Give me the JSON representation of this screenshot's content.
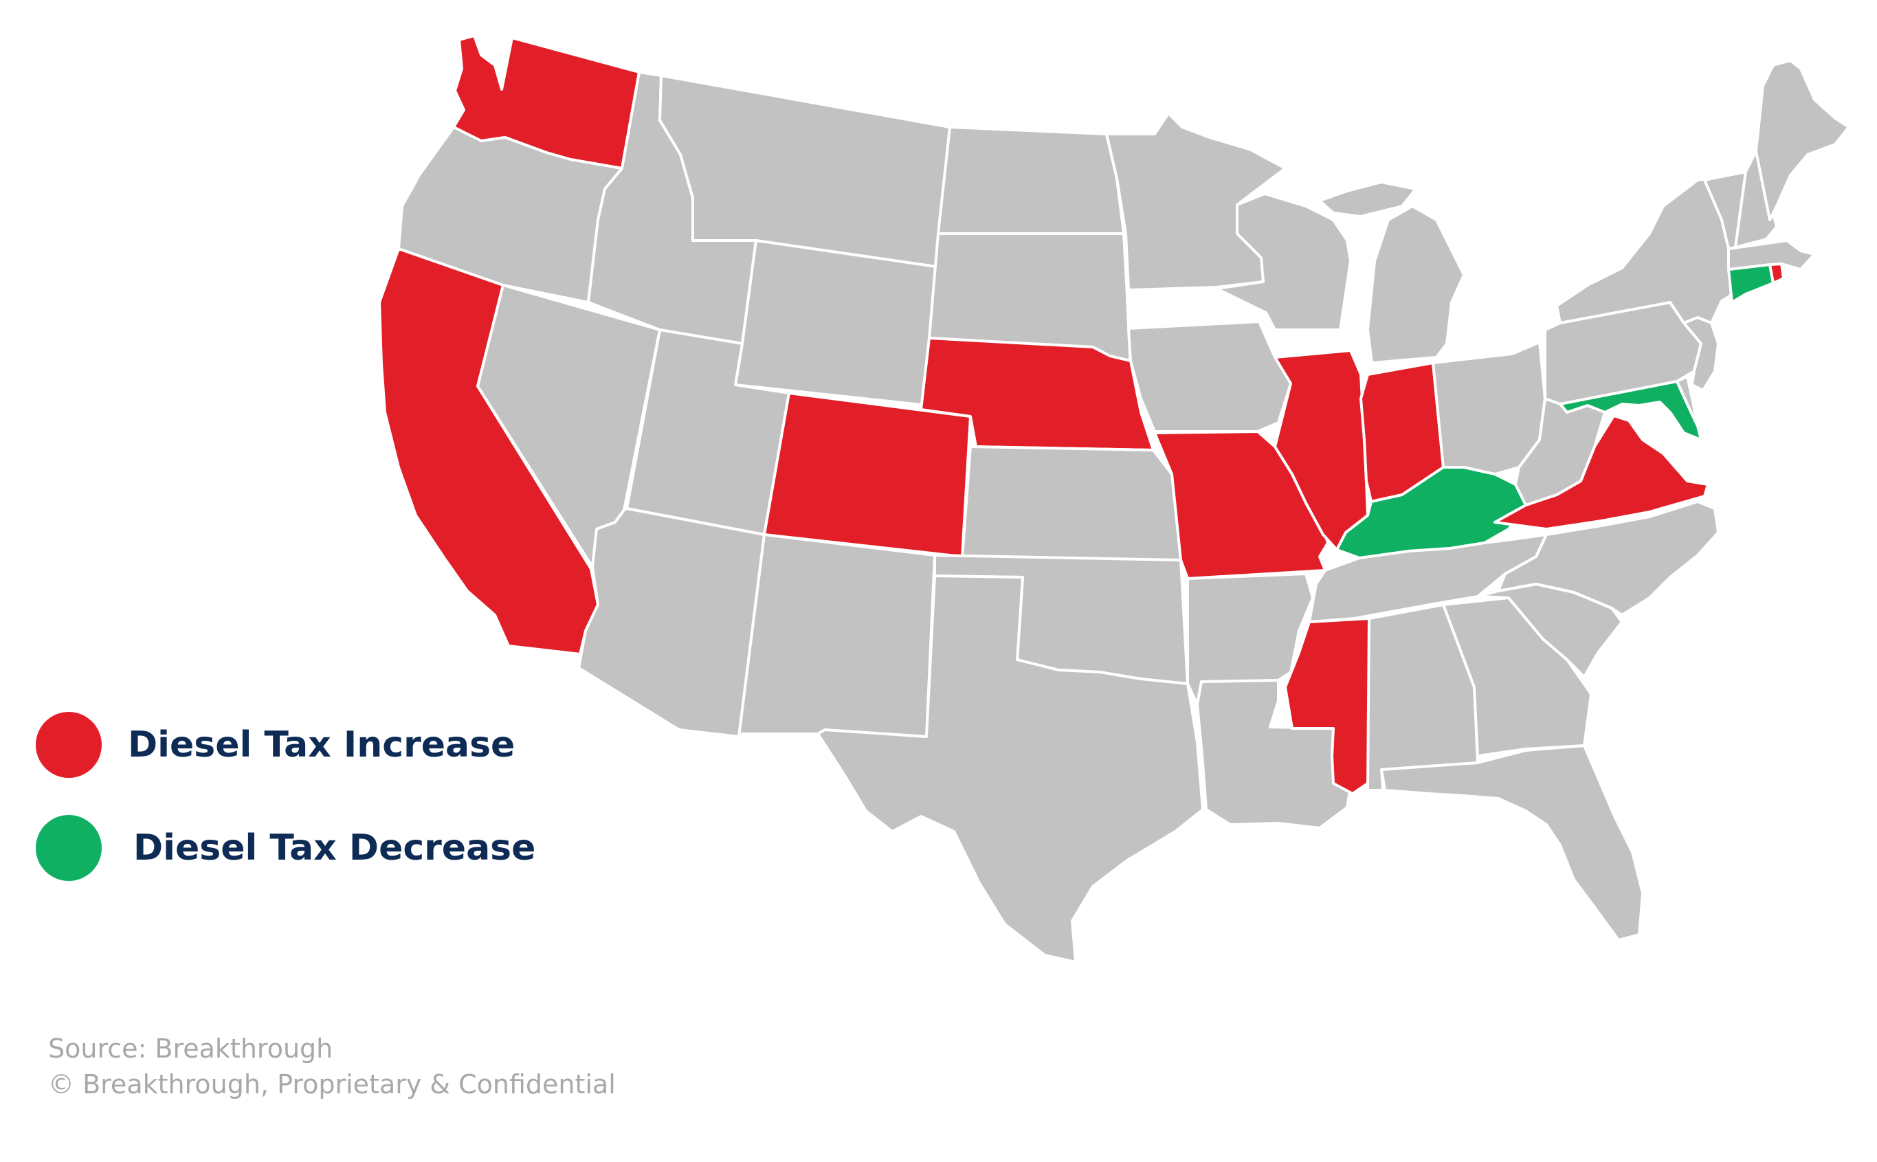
{
  "colors": {
    "increase": "#e21f28",
    "decrease": "#10b063",
    "neutral": "#c2c2c2",
    "border": "#ffffff",
    "legend_text": "#0e2b55",
    "source_text": "#a8a8a8"
  },
  "legend": {
    "increase_label": "Diesel Tax Increase",
    "decrease_label": "Diesel Tax Decrease"
  },
  "source": {
    "line1": "Source: Breakthrough",
    "line2": "© Breakthrough, Proprietary & Confidential"
  },
  "states": [
    {
      "id": "WA",
      "status": "increase"
    },
    {
      "id": "OR",
      "status": "none"
    },
    {
      "id": "CA",
      "status": "increase"
    },
    {
      "id": "NV",
      "status": "none"
    },
    {
      "id": "ID",
      "status": "none"
    },
    {
      "id": "MT",
      "status": "none"
    },
    {
      "id": "WY",
      "status": "none"
    },
    {
      "id": "UT",
      "status": "none"
    },
    {
      "id": "CO",
      "status": "increase"
    },
    {
      "id": "AZ",
      "status": "none"
    },
    {
      "id": "NM",
      "status": "none"
    },
    {
      "id": "ND",
      "status": "none"
    },
    {
      "id": "SD",
      "status": "none"
    },
    {
      "id": "NE",
      "status": "increase"
    },
    {
      "id": "KS",
      "status": "none"
    },
    {
      "id": "OK",
      "status": "none"
    },
    {
      "id": "TX",
      "status": "none"
    },
    {
      "id": "MN",
      "status": "none"
    },
    {
      "id": "IA",
      "status": "none"
    },
    {
      "id": "MO",
      "status": "increase"
    },
    {
      "id": "AR",
      "status": "none"
    },
    {
      "id": "LA",
      "status": "none"
    },
    {
      "id": "WI",
      "status": "none"
    },
    {
      "id": "IL",
      "status": "increase"
    },
    {
      "id": "MI",
      "status": "none"
    },
    {
      "id": "IN",
      "status": "increase"
    },
    {
      "id": "OH",
      "status": "none"
    },
    {
      "id": "KY",
      "status": "decrease"
    },
    {
      "id": "TN",
      "status": "none"
    },
    {
      "id": "MS",
      "status": "increase"
    },
    {
      "id": "AL",
      "status": "none"
    },
    {
      "id": "GA",
      "status": "none"
    },
    {
      "id": "FL",
      "status": "none"
    },
    {
      "id": "SC",
      "status": "none"
    },
    {
      "id": "NC",
      "status": "none"
    },
    {
      "id": "VA",
      "status": "increase"
    },
    {
      "id": "WV",
      "status": "none"
    },
    {
      "id": "PA",
      "status": "none"
    },
    {
      "id": "NY",
      "status": "none"
    },
    {
      "id": "MD",
      "status": "decrease"
    },
    {
      "id": "DE",
      "status": "none"
    },
    {
      "id": "NJ",
      "status": "none"
    },
    {
      "id": "CT",
      "status": "decrease"
    },
    {
      "id": "RI",
      "status": "increase"
    },
    {
      "id": "MA",
      "status": "none"
    },
    {
      "id": "VT",
      "status": "none"
    },
    {
      "id": "NH",
      "status": "none"
    },
    {
      "id": "ME",
      "status": "none"
    }
  ]
}
